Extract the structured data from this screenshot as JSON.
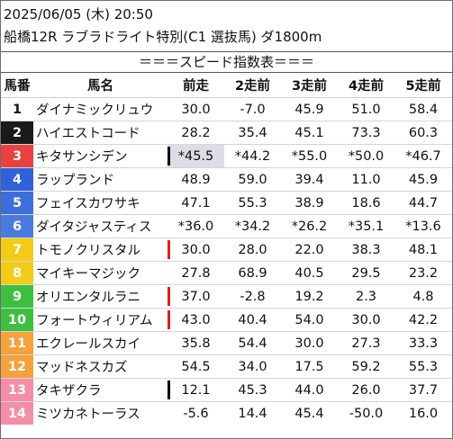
{
  "header": {
    "line1": "2025/06/05 (木) 20:50",
    "line2": "船橋12R ラブラドライト特別(C1 選抜馬) ダ1800m"
  },
  "banner": "＝＝＝スピード指数表＝＝＝",
  "columns": [
    "馬番",
    "馬名",
    "前走",
    "2走前",
    "3走前",
    "4走前",
    "5走前"
  ],
  "rows": [
    {
      "num": "1",
      "name": "ダイナミックリュウ",
      "v": [
        "30.0",
        "-7.0",
        "45.9",
        "51.0",
        "58.4"
      ],
      "bg": "#ffffff",
      "fg": "#111111"
    },
    {
      "num": "2",
      "name": "ハイエストコード",
      "v": [
        "28.2",
        "35.4",
        "45.1",
        "73.3",
        "60.3"
      ],
      "bg": "#1a1a1a",
      "fg": "#ffffff"
    },
    {
      "num": "3",
      "name": "キタサンシデン",
      "v": [
        "*45.5",
        "*44.2",
        "*55.0",
        "*50.0",
        "*46.7"
      ],
      "bg": "#e8413f",
      "fg": "#ffffff"
    },
    {
      "num": "4",
      "name": "ラップランド",
      "v": [
        "48.9",
        "59.0",
        "39.4",
        "11.0",
        "45.9"
      ],
      "bg": "#2f62d8",
      "fg": "#ffffff"
    },
    {
      "num": "5",
      "name": "フェイスカワサキ",
      "v": [
        "47.1",
        "55.3",
        "38.9",
        "18.6",
        "44.7"
      ],
      "bg": "#3d6fdc",
      "fg": "#ffffff"
    },
    {
      "num": "6",
      "name": "ダイタジャスティス",
      "v": [
        "*36.0",
        "*34.2",
        "*26.2",
        "*35.1",
        "*13.6"
      ],
      "bg": "#4a79e0",
      "fg": "#ffffff"
    },
    {
      "num": "7",
      "name": "トモノクリスタル",
      "v": [
        "30.0",
        "28.0",
        "22.0",
        "38.3",
        "48.1"
      ],
      "bg": "#f4cb16",
      "fg": "#ffffff"
    },
    {
      "num": "8",
      "name": "マイキーマジック",
      "v": [
        "27.8",
        "68.9",
        "40.5",
        "29.5",
        "23.2"
      ],
      "bg": "#f4cb16",
      "fg": "#ffffff"
    },
    {
      "num": "9",
      "name": "オリエンタルラニ",
      "v": [
        "37.0",
        "-2.8",
        "19.2",
        "2.3",
        "4.8"
      ],
      "bg": "#3fbf3f",
      "fg": "#ffffff"
    },
    {
      "num": "10",
      "name": "フォートウィリアム",
      "v": [
        "43.0",
        "40.4",
        "54.0",
        "30.0",
        "42.2"
      ],
      "bg": "#3fbf3f",
      "fg": "#ffffff"
    },
    {
      "num": "11",
      "name": "エクレールスカイ",
      "v": [
        "35.8",
        "54.4",
        "30.0",
        "27.3",
        "33.3"
      ],
      "bg": "#f5a13c",
      "fg": "#ffffff"
    },
    {
      "num": "12",
      "name": "マッドネスカズ",
      "v": [
        "54.5",
        "34.0",
        "17.5",
        "59.2",
        "55.3"
      ],
      "bg": "#f5a13c",
      "fg": "#ffffff"
    },
    {
      "num": "13",
      "name": "タキザクラ",
      "v": [
        "12.1",
        "45.3",
        "44.0",
        "26.0",
        "37.7"
      ],
      "bg": "#f48da8",
      "fg": "#ffffff"
    },
    {
      "num": "14",
      "name": "ミツカネトーラス",
      "v": [
        "-5.6",
        "14.4",
        "45.4",
        "-50.0",
        "16.0"
      ],
      "bg": "#f48da8",
      "fg": "#ffffff"
    }
  ],
  "marks": {
    "red": "#e02020",
    "black": "#000000",
    "highlight": "#dcdde5"
  }
}
